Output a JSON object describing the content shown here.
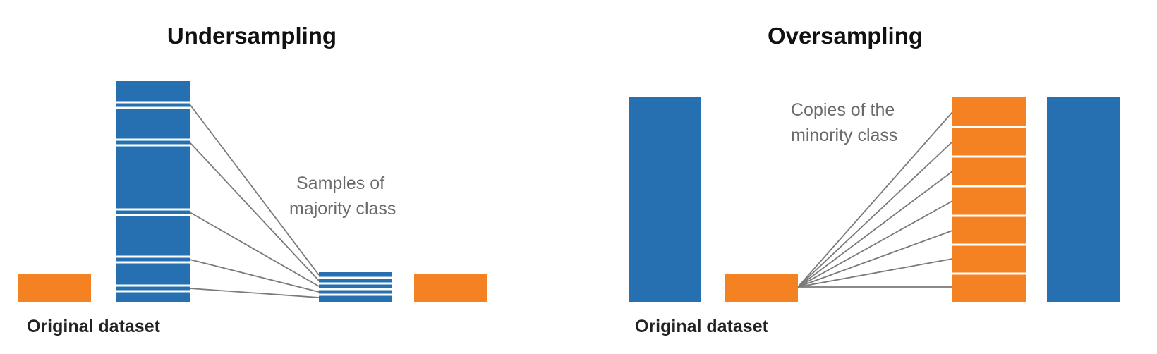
{
  "colors": {
    "majority": "#2670b2",
    "minority": "#f58222"
  },
  "undersampling": {
    "title": "Undersampling",
    "original_caption": "Original dataset",
    "annotation_lines": [
      "Samples of",
      "majority class"
    ]
  },
  "oversampling": {
    "title": "Oversampling",
    "original_caption": "Original dataset",
    "annotation_lines": [
      "Copies of the",
      "minority class"
    ]
  }
}
